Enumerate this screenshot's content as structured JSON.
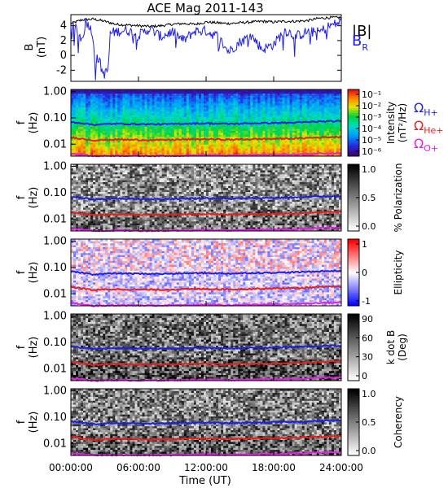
{
  "chart_data": [
    {
      "type": "line",
      "title": "ACE Mag 2011-143",
      "ylabel_main": "B",
      "ylabel_unit": "(nT)",
      "ylim": [
        -3.5,
        5.5
      ],
      "yticks": [
        "-2",
        "0",
        "2",
        "4"
      ],
      "legend": {
        "b_total": "|B|",
        "b_r_main": "B",
        "b_r_sub": "R"
      },
      "series": [
        {
          "name": "|B|",
          "color": "#000000",
          "x_hours": [
            0,
            1,
            2,
            3,
            4,
            5,
            6,
            7,
            8,
            9,
            10,
            11,
            12,
            13,
            14,
            15,
            16,
            17,
            18,
            19,
            20,
            21,
            22,
            23,
            24
          ],
          "values": [
            4.3,
            4.8,
            4.9,
            4.6,
            4.2,
            4.1,
            4.0,
            3.9,
            4.0,
            4.2,
            4.3,
            4.2,
            4.5,
            4.4,
            4.3,
            4.4,
            4.5,
            4.6,
            4.5,
            4.6,
            4.6,
            4.7,
            5.0,
            5.1,
            5.1
          ]
        },
        {
          "name": "B_R",
          "color": "#1f1fe6",
          "x_hours": [
            0,
            0.5,
            1,
            1.3,
            1.6,
            2,
            2.1,
            2.5,
            2.8,
            3,
            3.3,
            3.5,
            4,
            5,
            6,
            7,
            8,
            9,
            10,
            11,
            12,
            13,
            14,
            15,
            16,
            17,
            18,
            19,
            20,
            21,
            22,
            23,
            24
          ],
          "values": [
            4.0,
            3.5,
            2.0,
            4.5,
            4.2,
            2.5,
            -0.5,
            -0.5,
            -2.3,
            -2.5,
            -2.0,
            3.0,
            3.2,
            3.4,
            2.7,
            3.6,
            2.5,
            3.2,
            2.0,
            3.3,
            3.3,
            2.6,
            0.5,
            1.8,
            2.7,
            0.8,
            1.5,
            3.4,
            2.6,
            3.2,
            3.1,
            4.0,
            4.5
          ]
        }
      ]
    },
    {
      "type": "heatmap",
      "ylabel_main": "f",
      "ylabel_unit": "(Hz)",
      "yticks": [
        "1.00",
        "0.10",
        "0.01"
      ],
      "colorbar_label": "Intensity",
      "colorbar_unit": "(nT²/Hz)",
      "colorbar_scale": "log",
      "colorbar_ticks": [
        "10⁻¹",
        "10⁻²",
        "10⁻³",
        "10⁻⁴",
        "10⁻⁵",
        "10⁻⁶"
      ],
      "colormap": "rainbow",
      "gyrofrequency_legend": [
        {
          "main": "Ω",
          "sub": "H+",
          "color": "#1f1fe6"
        },
        {
          "main": "Ω",
          "sub": "He+",
          "color": "#e61f1f"
        },
        {
          "main": "Ω",
          "sub": "O+",
          "color": "#e61fe6"
        }
      ]
    },
    {
      "type": "heatmap",
      "ylabel_main": "f",
      "ylabel_unit": "(Hz)",
      "yticks": [
        "1.00",
        "0.10",
        "0.01"
      ],
      "colorbar_label": "% Polarization",
      "colorbar_ticks": [
        "1.0",
        "0.5",
        "0.0"
      ],
      "colormap": "gray"
    },
    {
      "type": "heatmap",
      "ylabel_main": "f",
      "ylabel_unit": "(Hz)",
      "yticks": [
        "1.00",
        "0.10",
        "0.01"
      ],
      "colorbar_label": "Ellipticity",
      "colorbar_ticks": [
        "1",
        "0",
        "-1"
      ],
      "colormap": "blue-white-red"
    },
    {
      "type": "heatmap",
      "ylabel_main": "f",
      "ylabel_unit": "(Hz)",
      "yticks": [
        "1.00",
        "0.10",
        "0.01"
      ],
      "colorbar_label": "k dot B",
      "colorbar_unit": "(Deg)",
      "colorbar_ticks": [
        "90",
        "60",
        "30",
        "0"
      ],
      "colormap": "gray"
    },
    {
      "type": "heatmap",
      "ylabel_main": "f",
      "ylabel_unit": "(Hz)",
      "yticks": [
        "1.00",
        "0.10",
        "0.01"
      ],
      "colorbar_label": "Coherency",
      "colorbar_ticks": [
        "1.0",
        "0.5",
        "0.0"
      ],
      "colormap": "gray"
    }
  ],
  "gyrofrequency_lines": {
    "x_hours": [
      0,
      2,
      4,
      6,
      8,
      10,
      12,
      14,
      16,
      18,
      20,
      22,
      24
    ],
    "H_plus_hz": [
      0.07,
      0.055,
      0.06,
      0.058,
      0.057,
      0.06,
      0.062,
      0.059,
      0.062,
      0.064,
      0.066,
      0.072,
      0.075
    ],
    "He_plus_hz": [
      0.018,
      0.014,
      0.015,
      0.0145,
      0.0143,
      0.015,
      0.0155,
      0.0148,
      0.0155,
      0.016,
      0.0165,
      0.018,
      0.019
    ],
    "O_plus_hz": [
      0.0044,
      0.0035,
      0.0037,
      0.0036,
      0.0036,
      0.0037,
      0.0039,
      0.0037,
      0.0039,
      0.004,
      0.0041,
      0.0045,
      0.0047
    ]
  },
  "xaxis": {
    "label": "Time (UT)",
    "ticks": [
      "00:00:00",
      "06:00:00",
      "12:00:00",
      "18:00:00",
      "24:00:00"
    ],
    "range_hours": [
      0,
      24
    ]
  }
}
